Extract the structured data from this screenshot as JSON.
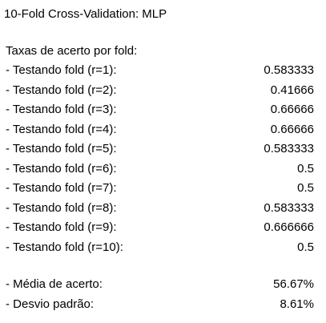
{
  "title": "10-Fold Cross-Validation: MLP",
  "heading": "Taxas de acerto por fold:",
  "folds": [
    {
      "label": "- Testando fold (r=1):",
      "value": "0.583333"
    },
    {
      "label": "- Testando fold (r=2):",
      "value": "0.41666"
    },
    {
      "label": "- Testando fold (r=3):",
      "value": "0.66666"
    },
    {
      "label": "- Testando fold (r=4):",
      "value": "0.66666"
    },
    {
      "label": "- Testando fold (r=5):",
      "value": "0.583333"
    },
    {
      "label": "- Testando fold (r=6):",
      "value": "0.5"
    },
    {
      "label": "- Testando fold (r=7):",
      "value": "0.5"
    },
    {
      "label": "- Testando fold (r=8):",
      "value": "0.583333"
    },
    {
      "label": "- Testando fold (r=9):",
      "value": "0.666666"
    },
    {
      "label": "- Testando fold (r=10):",
      "value": "0.5"
    }
  ],
  "summary": {
    "mean": {
      "label": "- Média de acerto:",
      "value": "56.67%"
    },
    "std": {
      "label": "- Desvio padrão:",
      "value": "8.61%"
    }
  }
}
